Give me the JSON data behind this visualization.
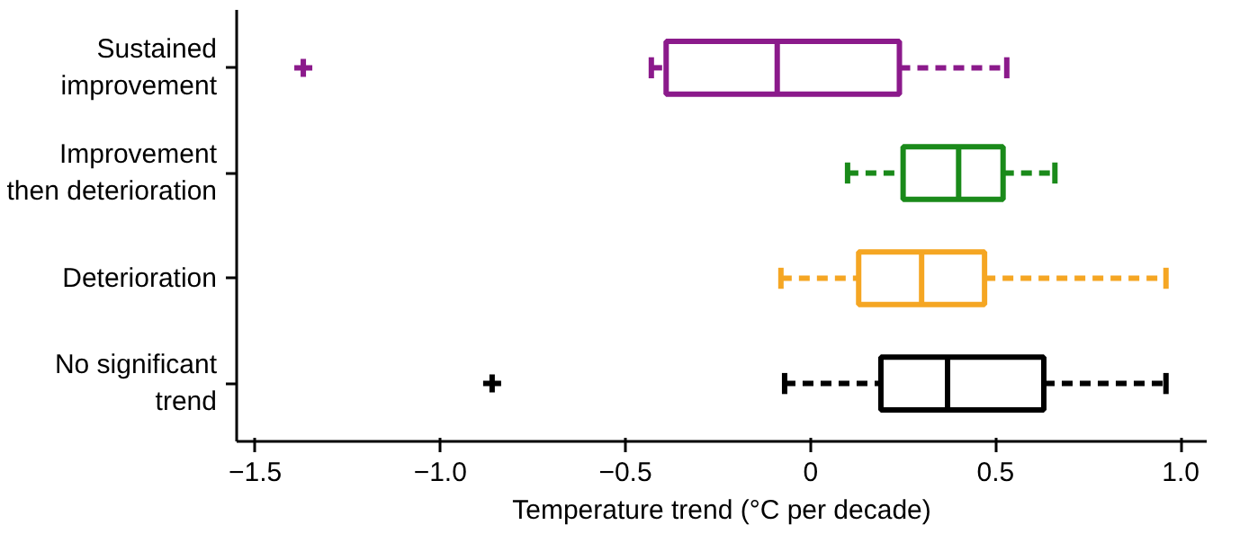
{
  "chart_data": {
    "type": "box",
    "orientation": "horizontal",
    "xlabel": "Temperature trend (°C per decade)",
    "categories": [
      "Sustained\nimprovement",
      "Improvement\nthen deterioration",
      "Deterioration",
      "No significant\ntrend"
    ],
    "colors": [
      "#8b1a8b",
      "#1a8a1a",
      "#f5a623",
      "#000000"
    ],
    "boxes": [
      {
        "low": -0.43,
        "q1": -0.39,
        "median": -0.09,
        "q3": 0.24,
        "high": 0.53,
        "outliers": [
          -1.37
        ]
      },
      {
        "low": 0.1,
        "q1": 0.25,
        "median": 0.4,
        "q3": 0.52,
        "high": 0.66
      },
      {
        "low": -0.08,
        "q1": 0.13,
        "median": 0.3,
        "q3": 0.47,
        "high": 0.96
      },
      {
        "low": -0.07,
        "q1": 0.19,
        "median": 0.37,
        "q3": 0.63,
        "high": 0.96,
        "outliers": [
          -0.86
        ]
      }
    ],
    "xlim": [
      -1.55,
      1.07
    ],
    "xticks": [
      {
        "value": -1.5,
        "label": "−1.5"
      },
      {
        "value": -1.0,
        "label": "−1.0"
      },
      {
        "value": -0.5,
        "label": "−0.5"
      },
      0,
      0.5,
      {
        "value": 1.0,
        "label": "1.0"
      }
    ],
    "grid": false,
    "line_style": "dashed"
  }
}
